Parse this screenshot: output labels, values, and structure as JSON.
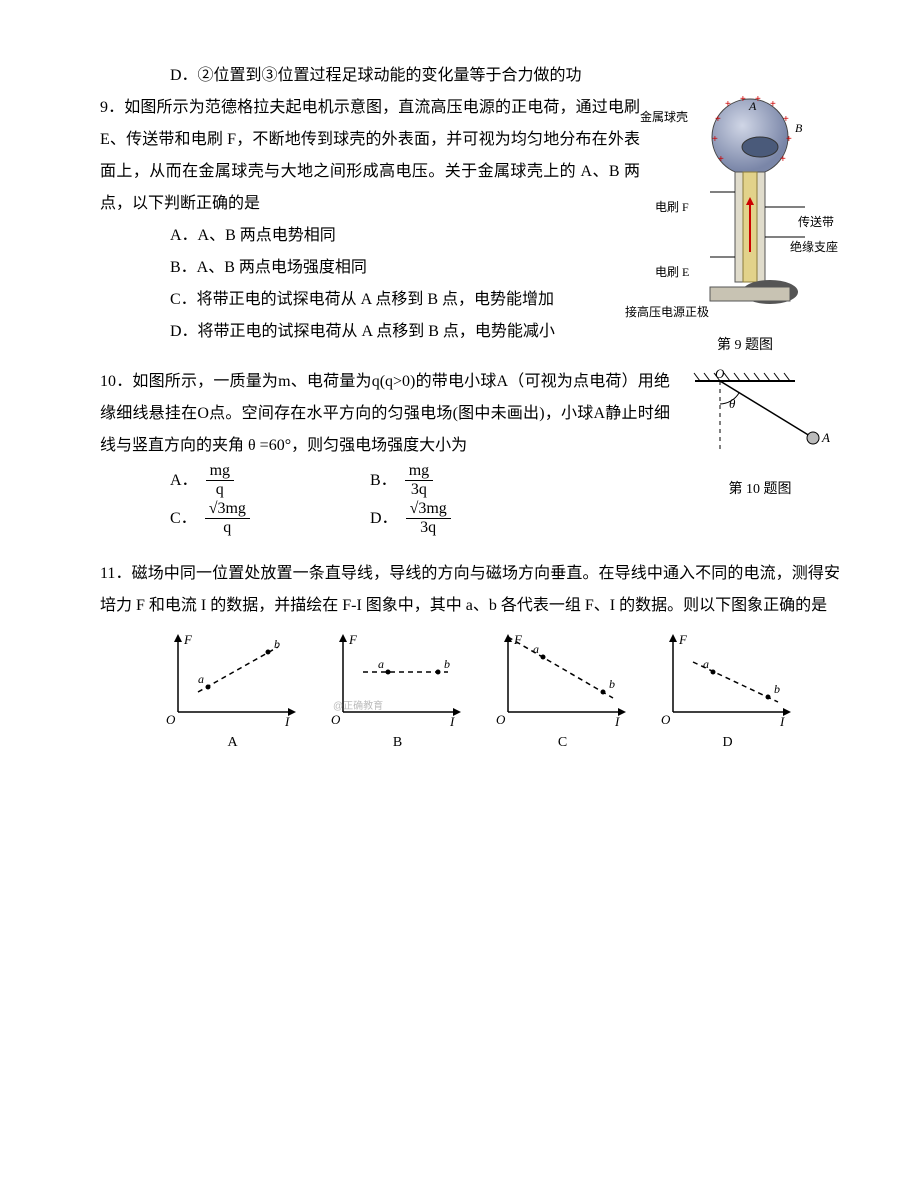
{
  "colors": {
    "text": "#000000",
    "background": "#ffffff",
    "dash": "#000000",
    "sphere_fill": "#9aa6c4",
    "sphere_hilite": "#d0d6e6",
    "stand_fill": "#c8c3b3",
    "belt_fill": "#e2d28a",
    "brush_fill": "#5a6a8a",
    "watermark": "#bbbbbb"
  },
  "q8": {
    "optD": "D．②位置到③位置过程足球动能的变化量等于合力做的功"
  },
  "q9": {
    "number": "9．",
    "stem": "如图所示为范德格拉夫起电机示意图，直流高压电源的正电荷，通过电刷 E、传送带和电刷 F，不断地传到球壳的外表面，并可视为均匀地分布在外表面上，从而在金属球壳与大地之间形成高电压。关于金属球壳上的 A、B 两点，以下判断正确的是",
    "A": "A．A、B 两点电势相同",
    "B": "B．A、B 两点电场强度相同",
    "C": "C．将带正电的试探电荷从 A 点移到 B 点，电势能增加",
    "D": "D．将带正电的试探电荷从 A 点移到 B 点，电势能减小",
    "caption": "第 9 题图",
    "labels": {
      "shell": "金属球壳",
      "A": "A",
      "B": "B",
      "brushF": "电刷 F",
      "brushE": "电刷 E",
      "belt": "传送带",
      "stand": "绝缘支座",
      "source": "接高压电源正极"
    }
  },
  "q10": {
    "number": "10．",
    "stem": "如图所示，一质量为m、电荷量为q(q>0)的带电小球A（可视为点电荷）用绝缘细线悬挂在O点。空间存在水平方向的匀强电场(图中未画出)，小球A静止时细线与竖直方向的夹角 θ =60°，则匀强电场强度大小为",
    "opts": {
      "A": {
        "label": "A．",
        "num": "mg",
        "den": "q"
      },
      "B": {
        "label": "B．",
        "num": "mg",
        "den": "3q"
      },
      "C": {
        "label": "C．",
        "num": "√3mg",
        "den": "q"
      },
      "D": {
        "label": "D．",
        "num": "√3mg",
        "den": "3q"
      }
    },
    "caption": "第 10 题图",
    "diagram": {
      "O": "O",
      "theta": "θ",
      "A": "A"
    }
  },
  "q11": {
    "number": "11．",
    "stem": "磁场中同一位置处放置一条直导线，导线的方向与磁场方向垂直。在导线中通入不同的电流，测得安培力 F 和电流 I 的数据，并描绘在 F-I 图象中，其中 a、b 各代表一组 F、I 的数据。则以下图象正确的是",
    "axes": {
      "y": "F",
      "x": "I",
      "origin": "O"
    },
    "pts": {
      "a": "a",
      "b": "b"
    },
    "caps": {
      "A": "A",
      "B": "B",
      "C": "C",
      "D": "D"
    },
    "watermark": "@正确教育",
    "graphs": {
      "A": {
        "a": [
          30,
          25
        ],
        "b": [
          90,
          60
        ],
        "dash_from": [
          20,
          20
        ],
        "dash_to": [
          100,
          65
        ],
        "origin_connect": false
      },
      "B": {
        "a": [
          45,
          40
        ],
        "b": [
          95,
          40
        ],
        "dash_from": [
          20,
          40
        ],
        "dash_to": [
          105,
          40
        ],
        "origin_connect": false
      },
      "C": {
        "a": [
          35,
          55
        ],
        "b": [
          95,
          20
        ],
        "dash_from": [
          0,
          75
        ],
        "dash_to": [
          105,
          14
        ],
        "origin_connect": true
      },
      "D": {
        "a": [
          40,
          40
        ],
        "b": [
          95,
          15
        ],
        "dash_from": [
          20,
          50
        ],
        "dash_to": [
          105,
          10
        ],
        "origin_connect": false
      }
    }
  }
}
